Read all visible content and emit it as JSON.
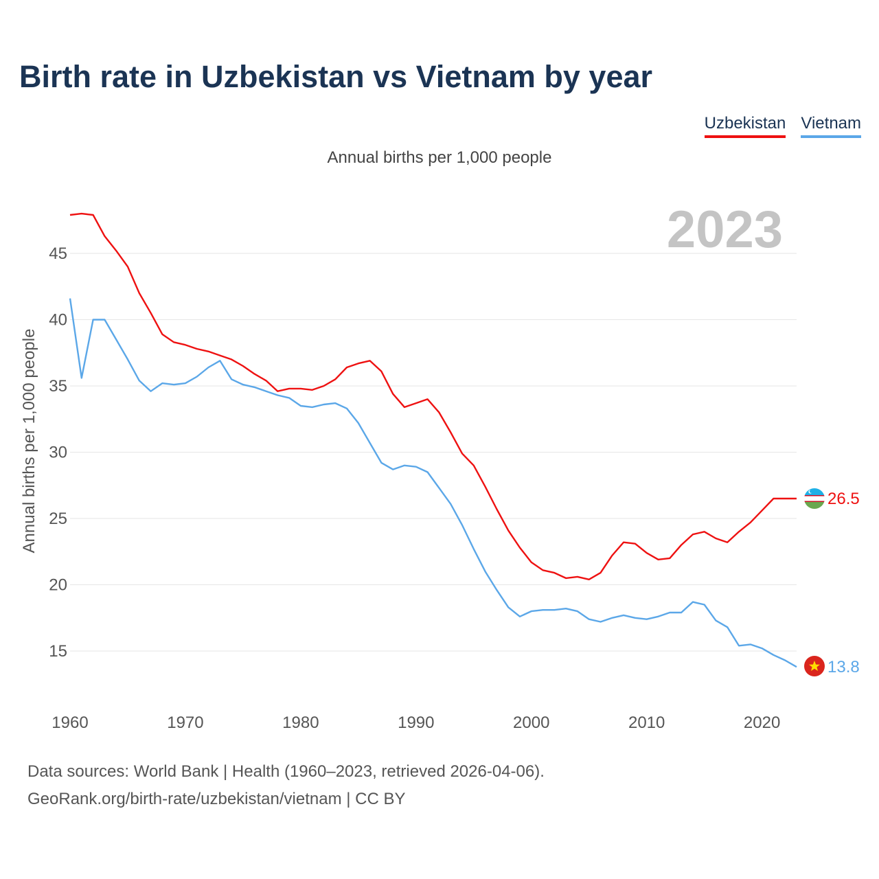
{
  "header": {
    "title": "Birth rate in Uzbekistan vs Vietnam by year",
    "subtitle": "Annual births per 1,000 people",
    "watermark_year": "2023"
  },
  "legend": [
    {
      "name": "Uzbekistan",
      "color": "#ee1111"
    },
    {
      "name": "Vietnam",
      "color": "#5ba7e8"
    }
  ],
  "footer": {
    "line1": "Data sources: World Bank | Health (1960–2023, retrieved 2026-04-06).",
    "line2": "GeoRank.org/birth-rate/uzbekistan/vietnam | CC BY"
  },
  "chart_data": {
    "type": "line",
    "title": "Birth rate in Uzbekistan vs Vietnam by year",
    "ylabel": "Annual births per 1,000 people",
    "xlabel": "",
    "xlim": [
      1960,
      2023
    ],
    "ylim": [
      12,
      49
    ],
    "x_ticks": [
      1960,
      1970,
      1980,
      1990,
      2000,
      2010,
      2020
    ],
    "y_ticks": [
      15,
      20,
      25,
      30,
      35,
      40,
      45
    ],
    "grid": true,
    "x": [
      1960,
      1961,
      1962,
      1963,
      1964,
      1965,
      1966,
      1967,
      1968,
      1969,
      1970,
      1971,
      1972,
      1973,
      1974,
      1975,
      1976,
      1977,
      1978,
      1979,
      1980,
      1981,
      1982,
      1983,
      1984,
      1985,
      1986,
      1987,
      1988,
      1989,
      1990,
      1991,
      1992,
      1993,
      1994,
      1995,
      1996,
      1997,
      1998,
      1999,
      2000,
      2001,
      2002,
      2003,
      2004,
      2005,
      2006,
      2007,
      2008,
      2009,
      2010,
      2011,
      2012,
      2013,
      2014,
      2015,
      2016,
      2017,
      2018,
      2019,
      2020,
      2021,
      2022,
      2023
    ],
    "series": [
      {
        "name": "Uzbekistan",
        "color": "#ee1111",
        "end_label": "26.5",
        "values": [
          47.9,
          48.0,
          47.9,
          46.3,
          45.2,
          44.0,
          42.0,
          40.5,
          38.9,
          38.3,
          38.1,
          37.8,
          37.6,
          37.3,
          37.0,
          36.5,
          35.9,
          35.4,
          34.6,
          34.8,
          34.8,
          34.7,
          35.0,
          35.5,
          36.4,
          36.7,
          36.9,
          36.1,
          34.4,
          33.4,
          33.7,
          34.0,
          33.0,
          31.5,
          29.9,
          29.0,
          27.4,
          25.7,
          24.1,
          22.8,
          21.7,
          21.1,
          20.9,
          20.5,
          20.6,
          20.4,
          20.9,
          22.2,
          23.2,
          23.1,
          22.4,
          21.9,
          22.0,
          23.0,
          23.8,
          24.0,
          23.5,
          23.2,
          24.0,
          24.7,
          25.6,
          26.5,
          26.5,
          26.5
        ]
      },
      {
        "name": "Vietnam",
        "color": "#5ba7e8",
        "end_label": "13.8",
        "values": [
          41.6,
          35.6,
          40.0,
          40.0,
          38.5,
          37.0,
          35.4,
          34.6,
          35.2,
          35.1,
          35.2,
          35.7,
          36.4,
          36.9,
          35.5,
          35.1,
          34.9,
          34.6,
          34.3,
          34.1,
          33.5,
          33.4,
          33.6,
          33.7,
          33.3,
          32.2,
          30.7,
          29.2,
          28.7,
          29.0,
          28.9,
          28.5,
          27.3,
          26.1,
          24.5,
          22.7,
          21.0,
          19.6,
          18.3,
          17.6,
          18.0,
          18.1,
          18.1,
          18.2,
          18.0,
          17.4,
          17.2,
          17.5,
          17.7,
          17.5,
          17.4,
          17.6,
          17.9,
          17.9,
          18.7,
          18.5,
          17.3,
          16.8,
          15.4,
          15.5,
          15.2,
          14.7,
          14.3,
          13.8
        ]
      }
    ]
  }
}
